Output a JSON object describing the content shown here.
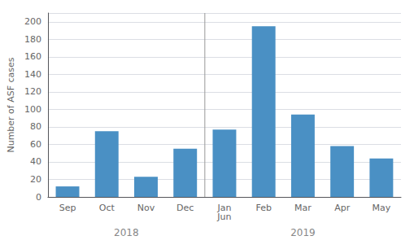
{
  "chart_data": {
    "type": "bar",
    "categories": [
      "Sep",
      "Oct",
      "Nov",
      "Dec",
      "Jan\nJun",
      "Feb",
      "Mar",
      "Apr",
      "May"
    ],
    "values": [
      12,
      75,
      23,
      55,
      77,
      195,
      94,
      58,
      44
    ],
    "color": "#4A90C4",
    "ylabel": "Number of ASF cases",
    "ylim": [
      0,
      210
    ],
    "yticks": [
      0,
      20,
      40,
      60,
      80,
      100,
      120,
      140,
      160,
      180,
      200
    ],
    "grid": true,
    "annotations": [
      {
        "text": "2018",
        "x": 1.5
      },
      {
        "text": "2019",
        "x": 6.0
      }
    ],
    "vline": {
      "x": 3.5
    }
  }
}
